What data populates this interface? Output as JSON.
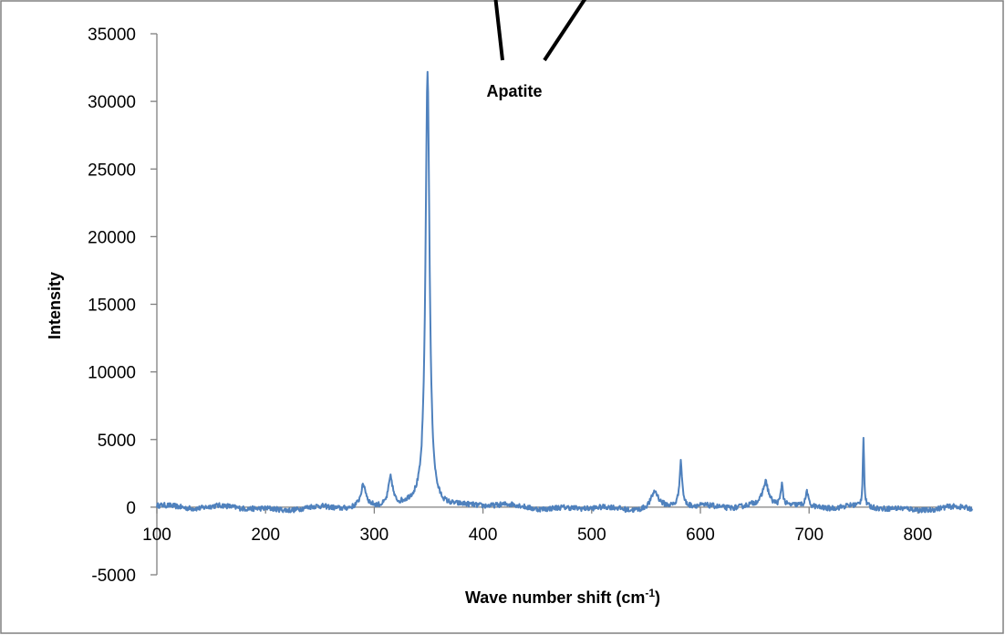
{
  "chart_data": {
    "type": "line",
    "title": "",
    "xlabel": "Wave number shift (cm",
    "xlabel_sup": "-1",
    "xlabel_tail": ")",
    "ylabel": "Intensity",
    "xlim": [
      100,
      850
    ],
    "ylim": [
      -5000,
      35000
    ],
    "x_ticks": [
      100,
      200,
      300,
      400,
      500,
      600,
      700,
      800
    ],
    "y_ticks": [
      -5000,
      0,
      5000,
      10000,
      15000,
      20000,
      25000,
      30000,
      35000
    ],
    "grid": false,
    "legend": "none",
    "series_color": "#4f81bd",
    "annotations": [
      {
        "text": "Apatite"
      }
    ],
    "peaks": [
      {
        "x": 290,
        "y": 1600,
        "w": 3
      },
      {
        "x": 315,
        "y": 2100,
        "w": 2.5
      },
      {
        "x": 349,
        "y": 32100,
        "w": 2.2
      },
      {
        "x": 558,
        "y": 1200,
        "w": 4
      },
      {
        "x": 582,
        "y": 3300,
        "w": 1.6
      },
      {
        "x": 660,
        "y": 1650,
        "w": 3
      },
      {
        "x": 675,
        "y": 1600,
        "w": 1.2
      },
      {
        "x": 698,
        "y": 1100,
        "w": 1.2
      },
      {
        "x": 750,
        "y": 5200,
        "w": 0.7
      }
    ]
  }
}
